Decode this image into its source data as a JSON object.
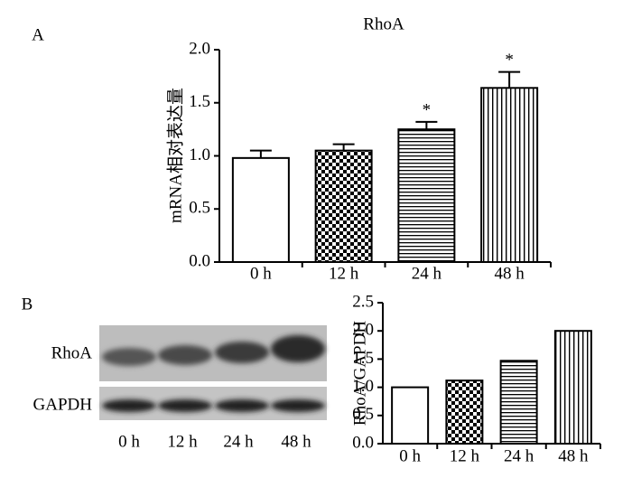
{
  "chart_data": [
    {
      "type": "bar",
      "panel_label": "A",
      "title": "RhoA",
      "y_label": "mRNA相对表达量",
      "categories": [
        "0 h",
        "12 h",
        "24 h",
        "48 h"
      ],
      "values": [
        0.98,
        1.05,
        1.25,
        1.64
      ],
      "errors": [
        0.07,
        0.06,
        0.07,
        0.15
      ],
      "annotations": [
        null,
        null,
        "*",
        "*"
      ],
      "ylim": [
        0,
        2
      ],
      "yticks": [
        {
          "value": 0,
          "label": "0.0"
        },
        0.5,
        {
          "value": 1,
          "label": "1.0"
        },
        1.5,
        {
          "value": 2,
          "label": "2.0"
        }
      ]
    },
    {
      "type": "bar",
      "y_label": "RhoA/GAPDH",
      "categories": [
        "0 h",
        "12 h",
        "24 h",
        "48 h"
      ],
      "values": [
        1.0,
        1.12,
        1.47,
        2.0
      ],
      "ylim": [
        0,
        2.5
      ],
      "yticks": [
        {
          "value": 0,
          "label": "0.0"
        },
        0.5,
        {
          "value": 1,
          "label": "1.0"
        },
        1.5,
        {
          "value": 2,
          "label": "2.0"
        },
        2.5
      ]
    }
  ],
  "blot": {
    "panel_label": "B",
    "rows": [
      "RhoA",
      "GAPDH"
    ],
    "lanes": [
      "0 h",
      "12 h",
      "24 h",
      "48 h"
    ]
  }
}
